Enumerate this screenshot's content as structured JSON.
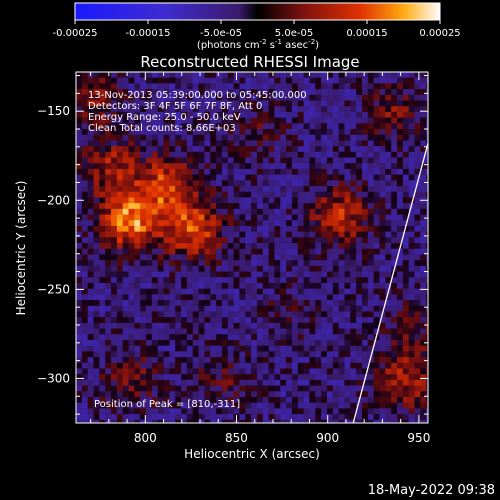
{
  "chart_data": {
    "type": "heatmap",
    "title": "Reconstructed RHESSI Image",
    "xlabel": "Heliocentric X (arcsec)",
    "ylabel": "Heliocentric Y (arcsec)",
    "xlim": [
      762,
      955
    ],
    "ylim": [
      -325,
      -128
    ],
    "x_ticks": [
      800,
      850,
      900,
      950
    ],
    "y_ticks": [
      -150,
      -200,
      -250,
      -300
    ],
    "colorbar": {
      "min": -0.00025,
      "max": 0.00025,
      "tick_labels": [
        "-0.00025",
        "-0.00015",
        "-5.0e-05",
        "5.0e-05",
        "0.00015",
        "0.00025"
      ],
      "label": "(photons cm",
      "label_sup1": "-2",
      "label_mid": " s",
      "label_sup2": "-1",
      "label_mid2": " asec",
      "label_sup3": "-2",
      "label_end": ")"
    },
    "annotations": [
      "13-Nov-2013 05:39:00.000 to 05:45:00.000",
      "Detectors: 3F 4F 5F 6F 7F 8F, Att 0",
      "Energy Range: 25.0 - 50.0 keV",
      "Clean    Total counts: 8.66E+03"
    ],
    "peak_label": "Position of Peak = [810,-311]",
    "peak_position": [
      810,
      -311
    ],
    "limb_line": [
      [
        914,
        -325
      ],
      [
        955,
        -168
      ]
    ],
    "sources": [
      {
        "x": 790,
        "y": -210,
        "level": 0.00022
      },
      {
        "x": 825,
        "y": -215,
        "level": 0.00018
      },
      {
        "x": 780,
        "y": -180,
        "level": 0.00012
      },
      {
        "x": 810,
        "y": -190,
        "level": 0.00016
      },
      {
        "x": 905,
        "y": -208,
        "level": 0.00015
      },
      {
        "x": 935,
        "y": -150,
        "level": 9e-05
      },
      {
        "x": 940,
        "y": -300,
        "level": 0.00013
      },
      {
        "x": 945,
        "y": -270,
        "level": 7e-05
      },
      {
        "x": 840,
        "y": -300,
        "level": 6e-05
      },
      {
        "x": 790,
        "y": -300,
        "level": 8e-05
      },
      {
        "x": 770,
        "y": -140,
        "level": 0.0001
      },
      {
        "x": 860,
        "y": -160,
        "level": 5e-05
      },
      {
        "x": 880,
        "y": -260,
        "level": 4e-05
      }
    ]
  },
  "footer": {
    "timestamp": "18-May-2022 09:38"
  }
}
